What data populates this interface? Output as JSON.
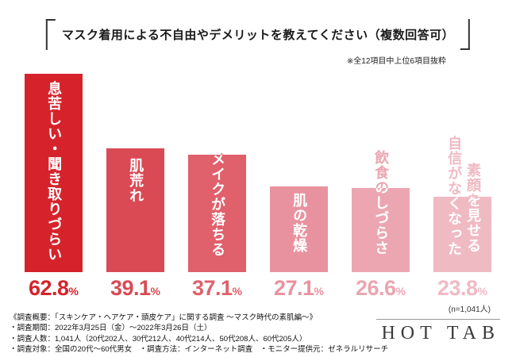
{
  "title": "マスク着用による不自由やデメリットを教えてください（複数回答可）",
  "note": "※全12項目中上位6項目抜粋",
  "chart_data": {
    "type": "bar",
    "title": "マスク着用による不自由やデメリットを教えてください（複数回答可）",
    "annotation": "※全12項目中上位6項目抜粋",
    "categories": [
      "息苦しい・聞き取りづらい",
      "肌荒れ",
      "メイクが落ちる",
      "肌の乾燥",
      "飲食のしづらさ",
      "素顔を見せる自信がなくなった"
    ],
    "values": [
      62.8,
      39.1,
      37.1,
      27.1,
      26.6,
      23.8
    ],
    "unit": "%",
    "ylim": [
      0,
      65
    ],
    "legend": "none",
    "grid": false,
    "bar_colors": [
      "#d6232b",
      "#da4a54",
      "#e0606b",
      "#e9929f",
      "#eba6b1",
      "#f0bac3"
    ],
    "value_labels": [
      "62.8%",
      "39.1%",
      "37.1%",
      "27.1%",
      "26.6%",
      "23.8%"
    ],
    "label_display": [
      [
        "息苦しい・聞き取りづらい"
      ],
      [
        "肌荒れ"
      ],
      [
        "メイクが落ちる"
      ],
      [
        "肌の乾燥"
      ],
      [
        "飲食のしづらさ"
      ],
      [
        "素顔を見せる",
        "自信がなくなった"
      ]
    ],
    "n_label": "(n=1,041人)"
  },
  "footer_lines": [
    "《調査概要：「スキンケア・ヘアケア・頭皮ケア」に関する調査 〜マスク時代の素肌編〜》",
    "・調査期間：2022年3月25日（金）〜2022年3月26日（土）",
    "・調査人数：1,041人（20代202人、30代212人、40代214人、50代208人、60代205人）",
    "・調査対象：全国の20代〜60代男女　・調査方法：インターネット調査　・モニター提供元：ゼネラルリサーチ"
  ],
  "logo": "HOT TAB"
}
